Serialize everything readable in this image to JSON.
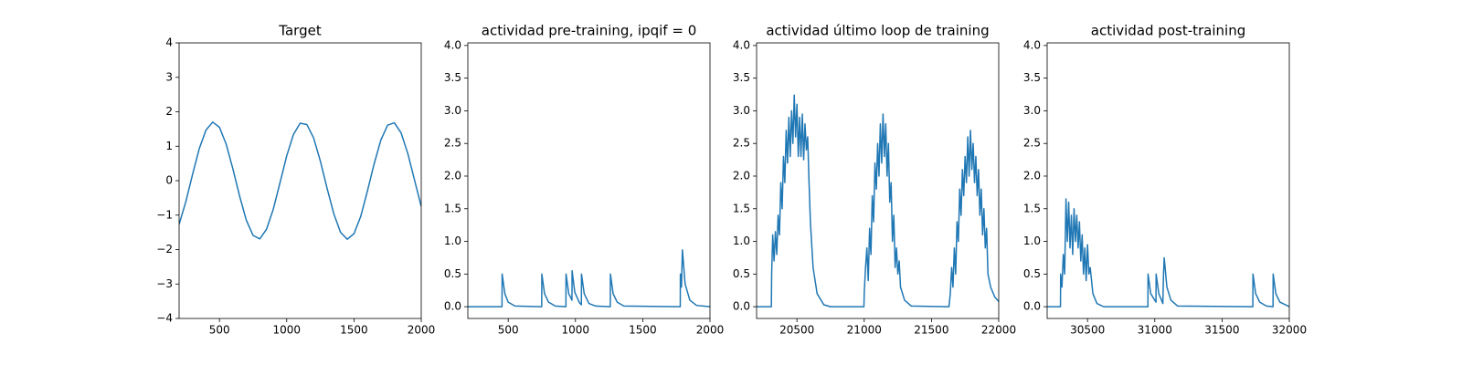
{
  "chart_data": [
    {
      "type": "line",
      "title": "Target",
      "color": "#1f77b4",
      "x": [
        200,
        250,
        300,
        350,
        400,
        450,
        500,
        550,
        600,
        650,
        700,
        750,
        800,
        850,
        900,
        950,
        1000,
        1050,
        1100,
        1150,
        1200,
        1250,
        1300,
        1350,
        1400,
        1450,
        1500,
        1550,
        1600,
        1650,
        1700,
        1750,
        1800,
        1850,
        1900,
        1950,
        2000
      ],
      "values": [
        -1.27,
        -0.61,
        0.18,
        0.93,
        1.47,
        1.7,
        1.55,
        1.06,
        0.34,
        -0.45,
        -1.15,
        -1.59,
        -1.69,
        -1.41,
        -0.83,
        -0.06,
        0.72,
        1.34,
        1.67,
        1.63,
        1.24,
        0.57,
        -0.22,
        -0.96,
        -1.5,
        -1.7,
        -1.54,
        -1.04,
        -0.3,
        0.49,
        1.18,
        1.61,
        1.68,
        1.39,
        0.79,
        0.02,
        -0.75
      ],
      "xlim": [
        200,
        2000
      ],
      "ylim": [
        -4,
        4
      ],
      "xticks": [
        500,
        1000,
        1500,
        2000
      ],
      "yticks": [
        {
          "value": -4,
          "label": "−4"
        },
        {
          "value": -3,
          "label": "−3"
        },
        {
          "value": -2,
          "label": "−2"
        },
        {
          "value": -1,
          "label": "−1"
        },
        0,
        1,
        2,
        3,
        4
      ]
    },
    {
      "type": "line",
      "title": "actividad pre-training, ipqif = 0",
      "color": "#1f77b4",
      "x": [
        200,
        454,
        455,
        475,
        500,
        550,
        749,
        750,
        770,
        800,
        850,
        929,
        930,
        950,
        974,
        975,
        995,
        1030,
        1044,
        1045,
        1065,
        1100,
        1150,
        1259,
        1260,
        1280,
        1310,
        1360,
        1779,
        1780,
        1788,
        1795,
        1815,
        1850,
        1900,
        2000
      ],
      "values": [
        0,
        0,
        0.5,
        0.2,
        0.07,
        0.01,
        0,
        0.5,
        0.2,
        0.07,
        0.01,
        0,
        0.5,
        0.2,
        0.1,
        0.55,
        0.22,
        0.06,
        0.03,
        0.5,
        0.2,
        0.05,
        0.01,
        0,
        0.5,
        0.2,
        0.07,
        0.01,
        0,
        0.5,
        0.3,
        0.87,
        0.35,
        0.1,
        0.02,
        0
      ],
      "xlim": [
        200,
        2000
      ],
      "ylim": [
        -0.18,
        4.04
      ],
      "xticks": [
        500,
        1000,
        1500,
        2000
      ],
      "yticks": [
        {
          "value": 0,
          "label": "0.0"
        },
        0.5,
        {
          "value": 1,
          "label": "1.0"
        },
        1.5,
        {
          "value": 2,
          "label": "2.0"
        },
        2.5,
        {
          "value": 3,
          "label": "3.0"
        },
        3.5,
        {
          "value": 4,
          "label": "4.0"
        }
      ]
    },
    {
      "type": "line",
      "title": "actividad último loop de training",
      "color": "#1f77b4",
      "x": [
        20200,
        20310,
        20312,
        20320,
        20330,
        20340,
        20350,
        20360,
        20370,
        20380,
        20390,
        20400,
        20410,
        20420,
        20430,
        20440,
        20450,
        20460,
        20470,
        20480,
        20490,
        20500,
        20510,
        20520,
        20530,
        20540,
        20550,
        20560,
        20570,
        20580,
        20590,
        20600,
        20620,
        20650,
        20700,
        20750,
        20998,
        21000,
        21010,
        21020,
        21030,
        21040,
        21050,
        21060,
        21070,
        21080,
        21090,
        21100,
        21110,
        21120,
        21130,
        21140,
        21150,
        21160,
        21170,
        21180,
        21190,
        21200,
        21210,
        21220,
        21230,
        21240,
        21250,
        21260,
        21270,
        21300,
        21350,
        21630,
        21640,
        21650,
        21660,
        21670,
        21680,
        21690,
        21700,
        21710,
        21720,
        21730,
        21740,
        21750,
        21760,
        21770,
        21780,
        21790,
        21800,
        21810,
        21820,
        21830,
        21840,
        21850,
        21860,
        21870,
        21880,
        21890,
        21900,
        21910,
        21920,
        21940,
        21970,
        22000
      ],
      "values": [
        0,
        0,
        0.5,
        1.1,
        0.7,
        1.15,
        0.8,
        1.4,
        1.1,
        1.9,
        1.5,
        2.3,
        1.9,
        2.7,
        2.2,
        2.9,
        2.3,
        3.0,
        2.5,
        3.24,
        2.6,
        3.1,
        2.3,
        2.9,
        2.3,
        2.95,
        2.25,
        2.8,
        2.4,
        2.6,
        1.9,
        1.3,
        0.6,
        0.2,
        0.03,
        0,
        0,
        0.2,
        0.6,
        0.9,
        0.4,
        1.2,
        0.8,
        1.7,
        1.3,
        2.2,
        1.8,
        2.5,
        2.0,
        2.8,
        2.2,
        2.95,
        2.3,
        2.8,
        2.0,
        2.5,
        1.6,
        1.9,
        1.0,
        1.4,
        0.6,
        0.9,
        0.5,
        0.7,
        0.3,
        0.1,
        0.01,
        0,
        0.2,
        0.6,
        0.3,
        0.9,
        0.5,
        1.3,
        1.0,
        1.8,
        1.4,
        2.1,
        1.7,
        2.3,
        1.9,
        2.6,
        2.0,
        2.7,
        2.1,
        2.5,
        1.9,
        2.3,
        1.7,
        2.1,
        1.4,
        1.8,
        1.1,
        1.5,
        0.9,
        1.2,
        0.5,
        0.3,
        0.15,
        0.08
      ],
      "xlim": [
        20200,
        22000
      ],
      "ylim": [
        -0.18,
        4.04
      ],
      "xticks": [
        20500,
        21000,
        21500,
        22000
      ],
      "yticks": [
        {
          "value": 0,
          "label": "0.0"
        },
        0.5,
        {
          "value": 1,
          "label": "1.0"
        },
        1.5,
        {
          "value": 2,
          "label": "2.0"
        },
        2.5,
        {
          "value": 3,
          "label": "3.0"
        },
        3.5,
        {
          "value": 4,
          "label": "4.0"
        }
      ]
    },
    {
      "type": "line",
      "title": "actividad post-training",
      "color": "#1f77b4",
      "x": [
        30200,
        30299,
        30300,
        30310,
        30320,
        30330,
        30340,
        30350,
        30360,
        30370,
        30380,
        30390,
        30400,
        30410,
        30420,
        30430,
        30440,
        30450,
        30460,
        30470,
        30480,
        30490,
        30500,
        30510,
        30520,
        30540,
        30570,
        30620,
        30949,
        30950,
        30970,
        31009,
        31010,
        31030,
        31060,
        31065,
        31070,
        31090,
        31120,
        31170,
        31729,
        31730,
        31750,
        31780,
        31830,
        31879,
        31880,
        31900,
        31930,
        32000
      ],
      "values": [
        0,
        0,
        0.5,
        0.3,
        0.8,
        0.5,
        1.65,
        1.0,
        1.6,
        0.9,
        1.4,
        0.8,
        1.5,
        1.0,
        1.4,
        0.9,
        1.3,
        0.7,
        1.1,
        0.5,
        0.9,
        0.4,
        0.95,
        0.5,
        0.6,
        0.2,
        0.05,
        0,
        0,
        0.5,
        0.2,
        0.07,
        0.5,
        0.2,
        0.05,
        0.5,
        0.75,
        0.3,
        0.1,
        0.01,
        0,
        0.5,
        0.2,
        0.07,
        0.01,
        0,
        0.5,
        0.2,
        0.07,
        0
      ],
      "xlim": [
        30200,
        32000
      ],
      "ylim": [
        -0.18,
        4.04
      ],
      "xticks": [
        30500,
        31000,
        31500,
        32000
      ],
      "yticks": [
        {
          "value": 0,
          "label": "0.0"
        },
        0.5,
        {
          "value": 1,
          "label": "1.0"
        },
        1.5,
        {
          "value": 2,
          "label": "2.0"
        },
        2.5,
        {
          "value": 3,
          "label": "3.0"
        },
        3.5,
        {
          "value": 4,
          "label": "4.0"
        }
      ]
    }
  ]
}
